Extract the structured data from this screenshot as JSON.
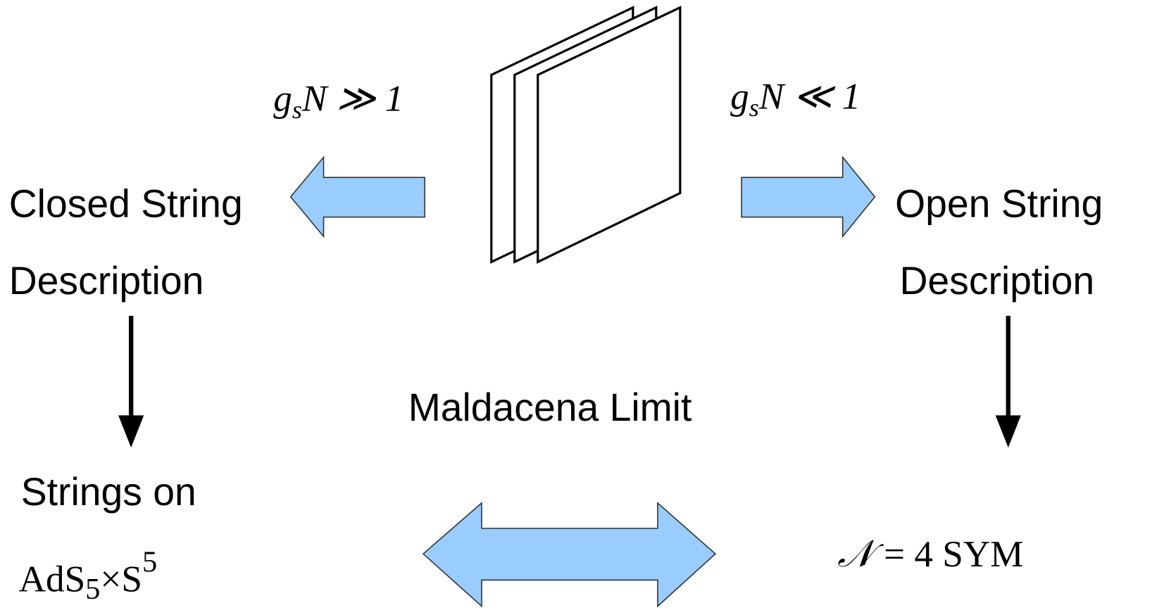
{
  "conditions": {
    "left": {
      "base": "g",
      "sub": "s",
      "rest": "N ≫ 1"
    },
    "right": {
      "base": "g",
      "sub": "s",
      "rest": "N ≪ 1"
    }
  },
  "left": {
    "line1": "Closed String",
    "line2": "Description",
    "result_line1": "Strings on",
    "result_line2": {
      "ads": "AdS",
      "ads_sub": "5",
      "times": "×S",
      "sup": "5"
    }
  },
  "right": {
    "line1": "Open String",
    "line2": "Description",
    "result": {
      "symbol": "𝒩",
      "rest": "= 4 SYM"
    }
  },
  "center": {
    "label": "Maldacena Limit"
  }
}
